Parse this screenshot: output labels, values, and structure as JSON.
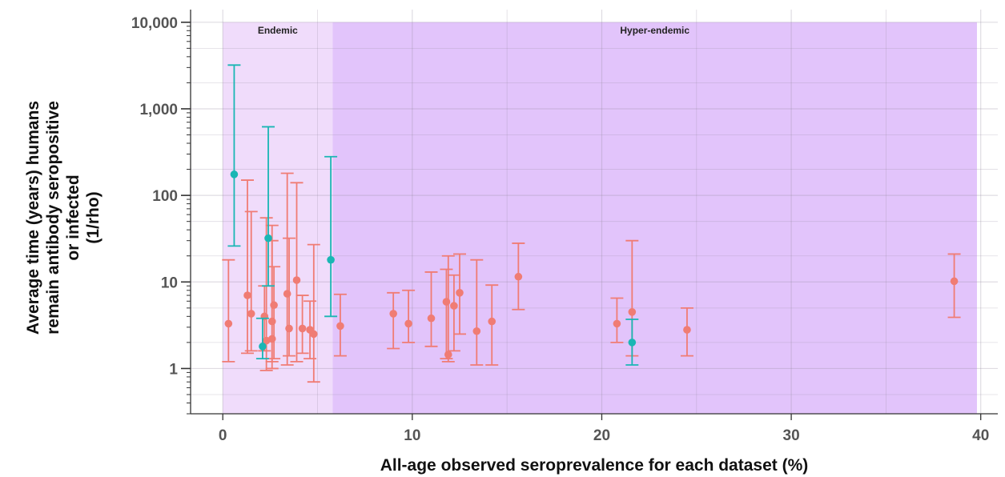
{
  "chart_data": {
    "type": "scatter",
    "xlabel": "All-age observed seroprevalence for each dataset (%)",
    "ylabel_lines": [
      "Average time (years) humans",
      "remain antibody seropositive",
      "or infected",
      "(1/rho)"
    ],
    "xlim": [
      -1.7,
      40.9
    ],
    "ylim": [
      0.3,
      14000
    ],
    "y_scale": "log",
    "x_ticks": [
      0,
      10,
      20,
      30,
      40
    ],
    "x_tick_labels": [
      "0",
      "10",
      "20",
      "30",
      "40"
    ],
    "y_ticks": [
      1,
      10,
      100,
      1000,
      10000
    ],
    "y_tick_labels": [
      "1",
      "10",
      "100",
      "1,000",
      "10,000"
    ],
    "regions": [
      {
        "label": "Endemic",
        "x_start": 0,
        "x_end": 5.8,
        "color": "#f0dcfb"
      },
      {
        "label": "Hyper-endemic",
        "x_start": 5.8,
        "x_end": 39.8,
        "color": "#e2c4fb"
      }
    ],
    "region_top": 10000,
    "series": [
      {
        "color": "#f07c74",
        "points": [
          {
            "x": 0.3,
            "y": 3.3,
            "low": 1.2,
            "high": 18
          },
          {
            "x": 1.3,
            "y": 7.0,
            "low": 1.5,
            "high": 150
          },
          {
            "x": 1.5,
            "y": 4.3,
            "low": 1.6,
            "high": 65
          },
          {
            "x": 2.2,
            "y": 4.0,
            "low": 1.6,
            "high": 9
          },
          {
            "x": 2.3,
            "y": 2.1,
            "low": 0.95,
            "high": 55
          },
          {
            "x": 2.6,
            "y": 2.2,
            "low": 1.0,
            "high": 45
          },
          {
            "x": 2.6,
            "y": 3.5,
            "low": 1.2,
            "high": 30
          },
          {
            "x": 2.7,
            "y": 5.4,
            "low": 1.3,
            "high": 15
          },
          {
            "x": 3.4,
            "y": 7.3,
            "low": 1.1,
            "high": 180
          },
          {
            "x": 3.5,
            "y": 2.9,
            "low": 1.4,
            "high": 32
          },
          {
            "x": 3.9,
            "y": 10.5,
            "low": 1.2,
            "high": 140
          },
          {
            "x": 4.2,
            "y": 2.9,
            "low": 1.5,
            "high": 7
          },
          {
            "x": 4.6,
            "y": 2.8,
            "low": 1.3,
            "high": 6
          },
          {
            "x": 4.8,
            "y": 2.5,
            "low": 0.7,
            "high": 27
          },
          {
            "x": 6.2,
            "y": 3.1,
            "low": 1.4,
            "high": 7.2
          },
          {
            "x": 9.0,
            "y": 4.3,
            "low": 1.7,
            "high": 7.5
          },
          {
            "x": 9.8,
            "y": 3.3,
            "low": 2.0,
            "high": 8.0
          },
          {
            "x": 11.0,
            "y": 3.8,
            "low": 1.8,
            "high": 13
          },
          {
            "x": 11.8,
            "y": 5.9,
            "low": 1.3,
            "high": 14
          },
          {
            "x": 11.9,
            "y": 1.45,
            "low": 1.2,
            "high": 20
          },
          {
            "x": 12.2,
            "y": 5.3,
            "low": 1.6,
            "high": 12
          },
          {
            "x": 12.5,
            "y": 7.5,
            "low": 2.5,
            "high": 21
          },
          {
            "x": 13.4,
            "y": 2.7,
            "low": 1.1,
            "high": 18
          },
          {
            "x": 14.2,
            "y": 3.5,
            "low": 1.1,
            "high": 9.2
          },
          {
            "x": 15.6,
            "y": 11.5,
            "low": 4.8,
            "high": 28
          },
          {
            "x": 20.8,
            "y": 3.3,
            "low": 2.0,
            "high": 6.5
          },
          {
            "x": 21.6,
            "y": 4.5,
            "low": 1.4,
            "high": 30
          },
          {
            "x": 24.5,
            "y": 2.8,
            "low": 1.4,
            "high": 5.0
          },
          {
            "x": 38.6,
            "y": 10.2,
            "low": 3.9,
            "high": 21
          }
        ]
      },
      {
        "color": "#1ab6b4",
        "points": [
          {
            "x": 0.6,
            "y": 175,
            "low": 26,
            "high": 3200
          },
          {
            "x": 2.1,
            "y": 1.8,
            "low": 1.3,
            "high": 3.8
          },
          {
            "x": 2.4,
            "y": 32,
            "low": 9.0,
            "high": 620
          },
          {
            "x": 5.7,
            "y": 18,
            "low": 4.0,
            "high": 280
          },
          {
            "x": 21.6,
            "y": 2.0,
            "low": 1.1,
            "high": 3.7
          }
        ]
      }
    ]
  }
}
